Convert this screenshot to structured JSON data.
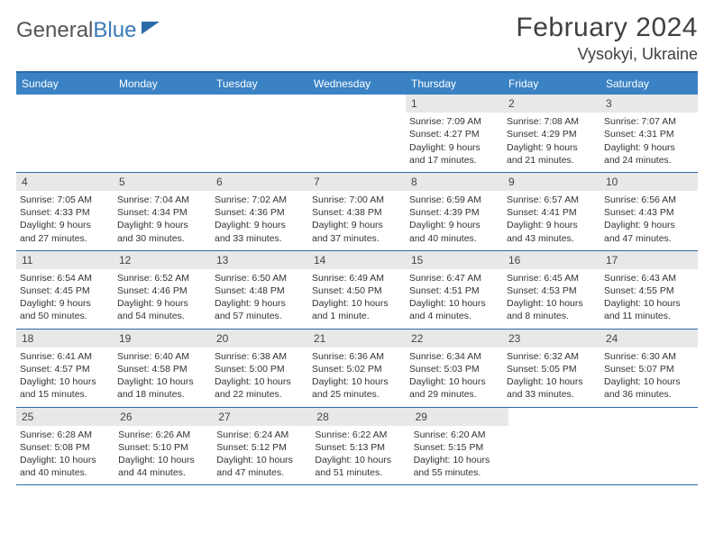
{
  "logo": {
    "part1": "General",
    "part2": "Blue"
  },
  "header": {
    "month": "February 2024",
    "location": "Vysokyi, Ukraine"
  },
  "colors": {
    "accent": "#3a82c4",
    "rule": "#2b6aa8",
    "dayNumBg": "#e8e8e8"
  },
  "dayNames": [
    "Sunday",
    "Monday",
    "Tuesday",
    "Wednesday",
    "Thursday",
    "Friday",
    "Saturday"
  ],
  "weeks": [
    [
      null,
      null,
      null,
      null,
      {
        "n": "1",
        "sr": "Sunrise: 7:09 AM",
        "ss": "Sunset: 4:27 PM",
        "d1": "Daylight: 9 hours",
        "d2": "and 17 minutes."
      },
      {
        "n": "2",
        "sr": "Sunrise: 7:08 AM",
        "ss": "Sunset: 4:29 PM",
        "d1": "Daylight: 9 hours",
        "d2": "and 21 minutes."
      },
      {
        "n": "3",
        "sr": "Sunrise: 7:07 AM",
        "ss": "Sunset: 4:31 PM",
        "d1": "Daylight: 9 hours",
        "d2": "and 24 minutes."
      }
    ],
    [
      {
        "n": "4",
        "sr": "Sunrise: 7:05 AM",
        "ss": "Sunset: 4:33 PM",
        "d1": "Daylight: 9 hours",
        "d2": "and 27 minutes."
      },
      {
        "n": "5",
        "sr": "Sunrise: 7:04 AM",
        "ss": "Sunset: 4:34 PM",
        "d1": "Daylight: 9 hours",
        "d2": "and 30 minutes."
      },
      {
        "n": "6",
        "sr": "Sunrise: 7:02 AM",
        "ss": "Sunset: 4:36 PM",
        "d1": "Daylight: 9 hours",
        "d2": "and 33 minutes."
      },
      {
        "n": "7",
        "sr": "Sunrise: 7:00 AM",
        "ss": "Sunset: 4:38 PM",
        "d1": "Daylight: 9 hours",
        "d2": "and 37 minutes."
      },
      {
        "n": "8",
        "sr": "Sunrise: 6:59 AM",
        "ss": "Sunset: 4:39 PM",
        "d1": "Daylight: 9 hours",
        "d2": "and 40 minutes."
      },
      {
        "n": "9",
        "sr": "Sunrise: 6:57 AM",
        "ss": "Sunset: 4:41 PM",
        "d1": "Daylight: 9 hours",
        "d2": "and 43 minutes."
      },
      {
        "n": "10",
        "sr": "Sunrise: 6:56 AM",
        "ss": "Sunset: 4:43 PM",
        "d1": "Daylight: 9 hours",
        "d2": "and 47 minutes."
      }
    ],
    [
      {
        "n": "11",
        "sr": "Sunrise: 6:54 AM",
        "ss": "Sunset: 4:45 PM",
        "d1": "Daylight: 9 hours",
        "d2": "and 50 minutes."
      },
      {
        "n": "12",
        "sr": "Sunrise: 6:52 AM",
        "ss": "Sunset: 4:46 PM",
        "d1": "Daylight: 9 hours",
        "d2": "and 54 minutes."
      },
      {
        "n": "13",
        "sr": "Sunrise: 6:50 AM",
        "ss": "Sunset: 4:48 PM",
        "d1": "Daylight: 9 hours",
        "d2": "and 57 minutes."
      },
      {
        "n": "14",
        "sr": "Sunrise: 6:49 AM",
        "ss": "Sunset: 4:50 PM",
        "d1": "Daylight: 10 hours",
        "d2": "and 1 minute."
      },
      {
        "n": "15",
        "sr": "Sunrise: 6:47 AM",
        "ss": "Sunset: 4:51 PM",
        "d1": "Daylight: 10 hours",
        "d2": "and 4 minutes."
      },
      {
        "n": "16",
        "sr": "Sunrise: 6:45 AM",
        "ss": "Sunset: 4:53 PM",
        "d1": "Daylight: 10 hours",
        "d2": "and 8 minutes."
      },
      {
        "n": "17",
        "sr": "Sunrise: 6:43 AM",
        "ss": "Sunset: 4:55 PM",
        "d1": "Daylight: 10 hours",
        "d2": "and 11 minutes."
      }
    ],
    [
      {
        "n": "18",
        "sr": "Sunrise: 6:41 AM",
        "ss": "Sunset: 4:57 PM",
        "d1": "Daylight: 10 hours",
        "d2": "and 15 minutes."
      },
      {
        "n": "19",
        "sr": "Sunrise: 6:40 AM",
        "ss": "Sunset: 4:58 PM",
        "d1": "Daylight: 10 hours",
        "d2": "and 18 minutes."
      },
      {
        "n": "20",
        "sr": "Sunrise: 6:38 AM",
        "ss": "Sunset: 5:00 PM",
        "d1": "Daylight: 10 hours",
        "d2": "and 22 minutes."
      },
      {
        "n": "21",
        "sr": "Sunrise: 6:36 AM",
        "ss": "Sunset: 5:02 PM",
        "d1": "Daylight: 10 hours",
        "d2": "and 25 minutes."
      },
      {
        "n": "22",
        "sr": "Sunrise: 6:34 AM",
        "ss": "Sunset: 5:03 PM",
        "d1": "Daylight: 10 hours",
        "d2": "and 29 minutes."
      },
      {
        "n": "23",
        "sr": "Sunrise: 6:32 AM",
        "ss": "Sunset: 5:05 PM",
        "d1": "Daylight: 10 hours",
        "d2": "and 33 minutes."
      },
      {
        "n": "24",
        "sr": "Sunrise: 6:30 AM",
        "ss": "Sunset: 5:07 PM",
        "d1": "Daylight: 10 hours",
        "d2": "and 36 minutes."
      }
    ],
    [
      {
        "n": "25",
        "sr": "Sunrise: 6:28 AM",
        "ss": "Sunset: 5:08 PM",
        "d1": "Daylight: 10 hours",
        "d2": "and 40 minutes."
      },
      {
        "n": "26",
        "sr": "Sunrise: 6:26 AM",
        "ss": "Sunset: 5:10 PM",
        "d1": "Daylight: 10 hours",
        "d2": "and 44 minutes."
      },
      {
        "n": "27",
        "sr": "Sunrise: 6:24 AM",
        "ss": "Sunset: 5:12 PM",
        "d1": "Daylight: 10 hours",
        "d2": "and 47 minutes."
      },
      {
        "n": "28",
        "sr": "Sunrise: 6:22 AM",
        "ss": "Sunset: 5:13 PM",
        "d1": "Daylight: 10 hours",
        "d2": "and 51 minutes."
      },
      {
        "n": "29",
        "sr": "Sunrise: 6:20 AM",
        "ss": "Sunset: 5:15 PM",
        "d1": "Daylight: 10 hours",
        "d2": "and 55 minutes."
      },
      null,
      null
    ]
  ]
}
